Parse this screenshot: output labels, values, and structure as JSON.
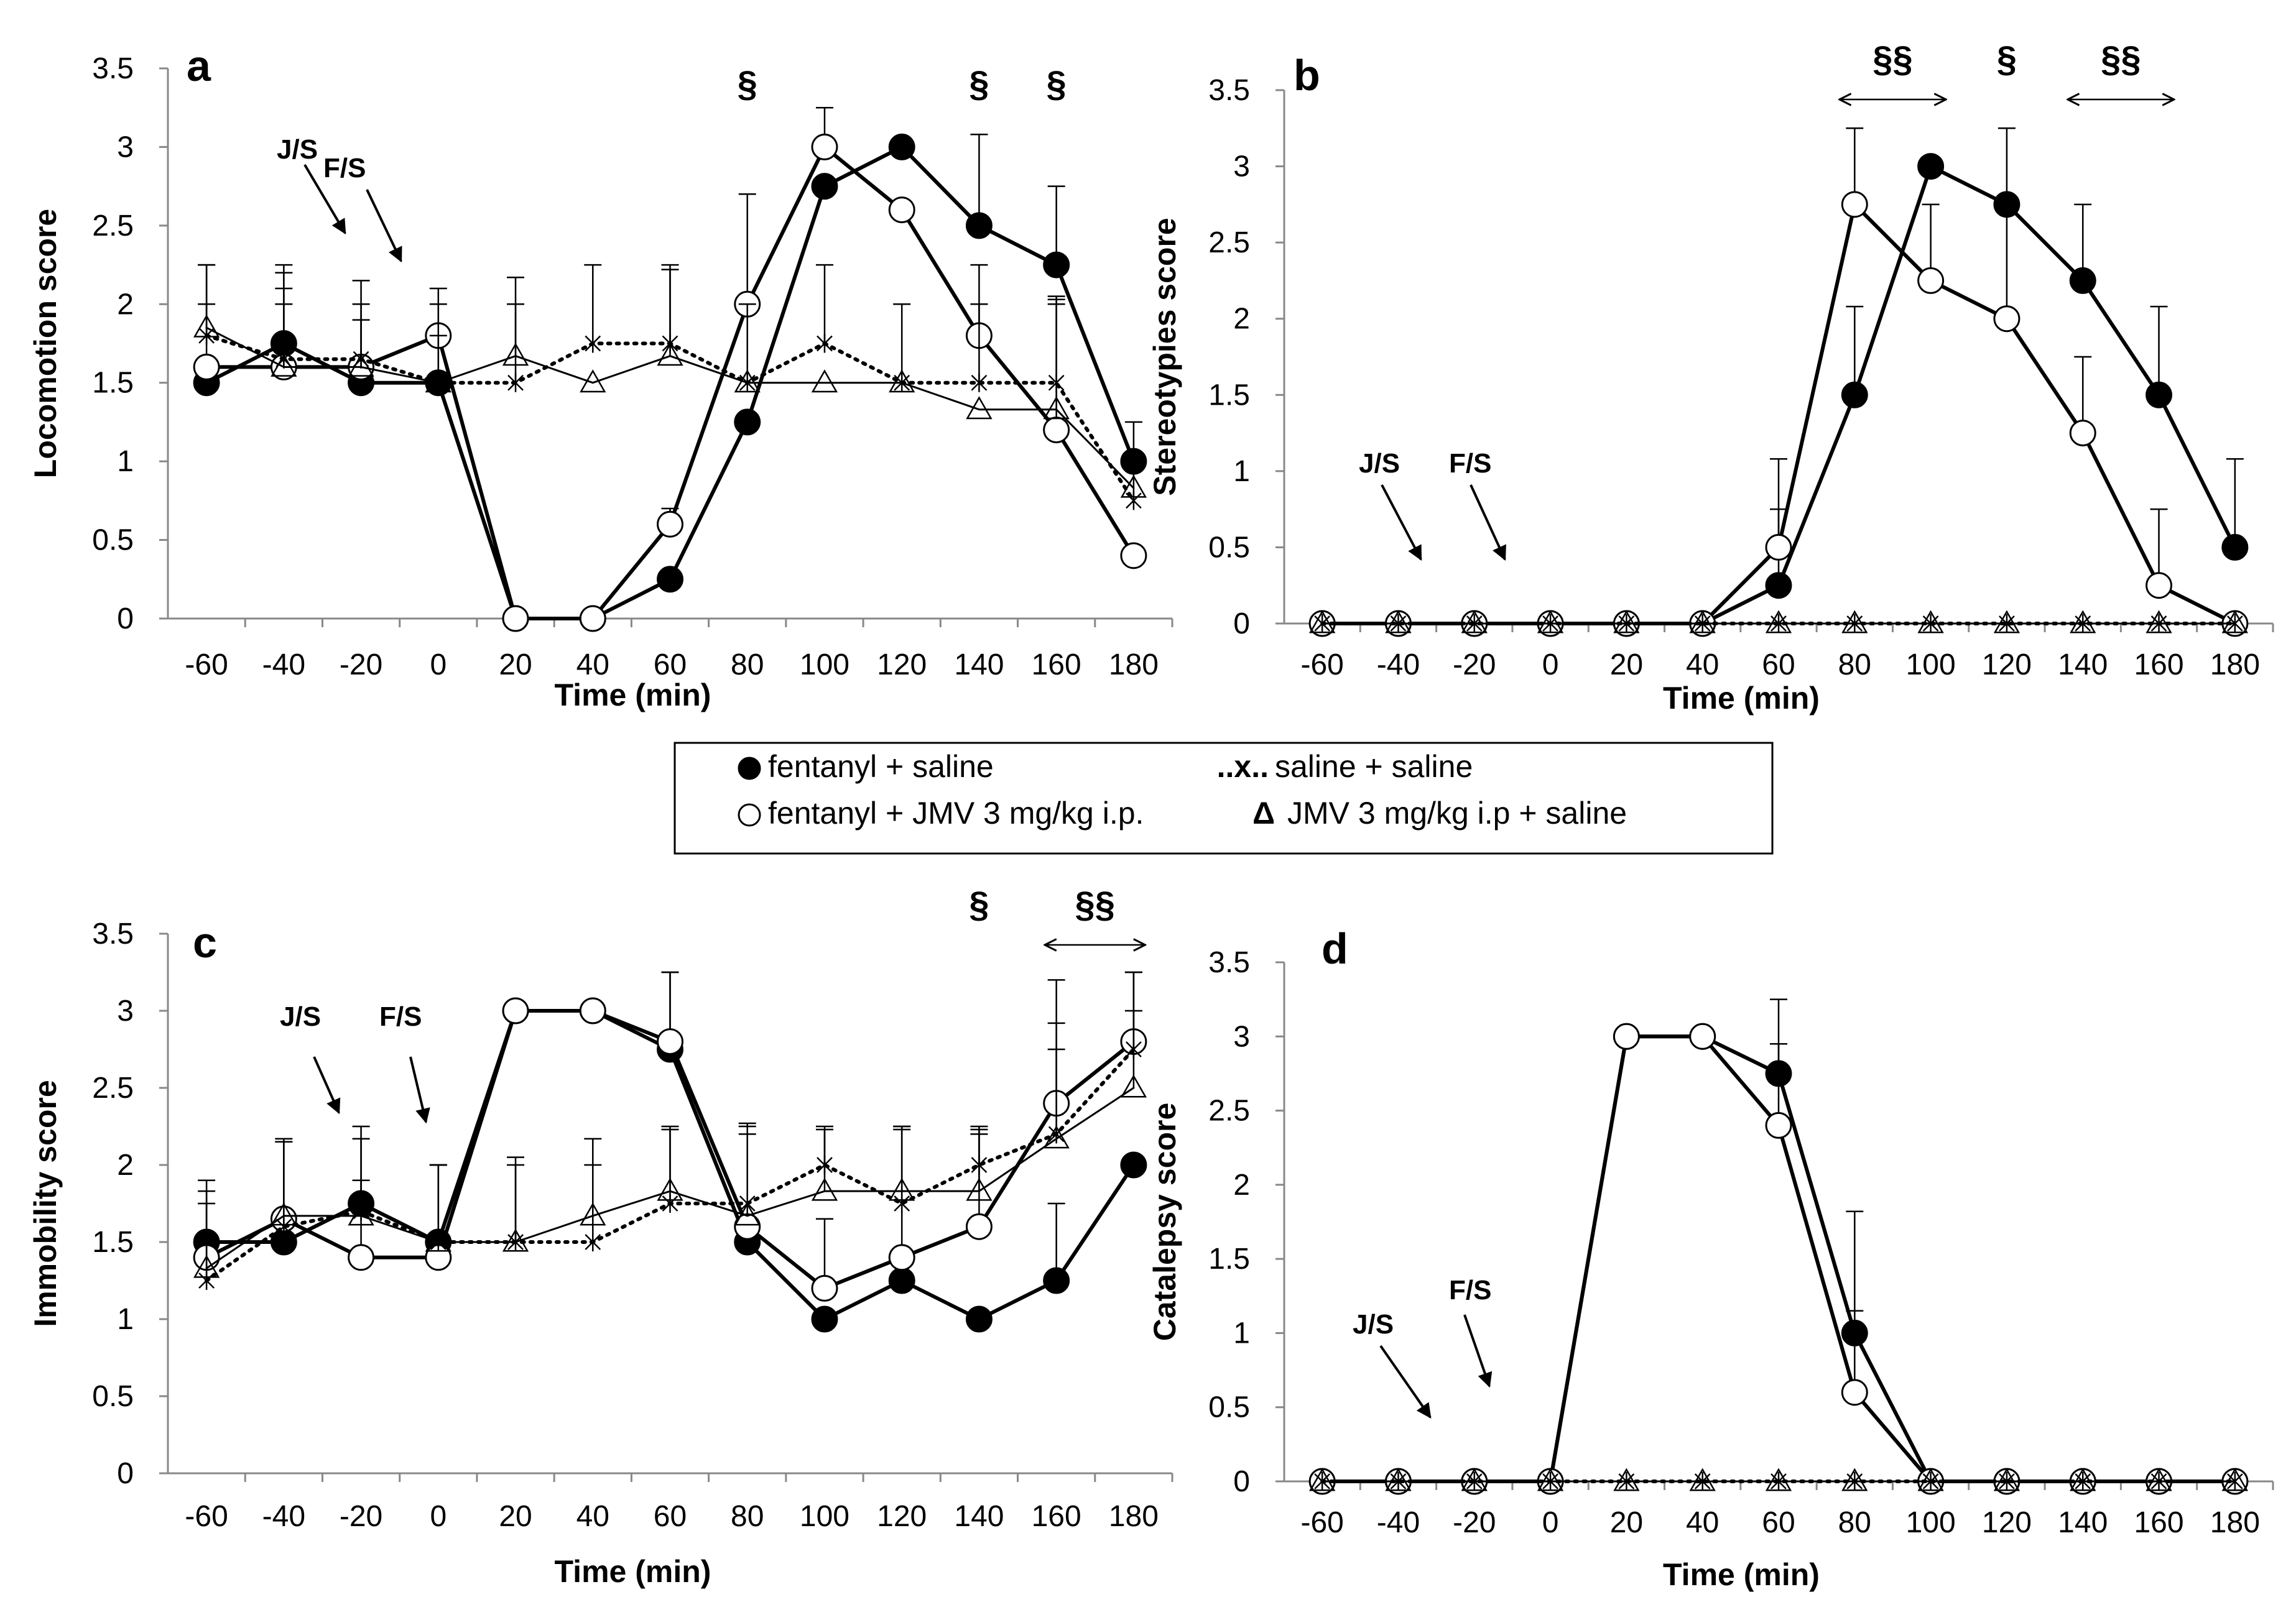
{
  "chart_data": [
    {
      "panel": "a",
      "type": "line",
      "xlabel": "Time (min)",
      "ylabel": "Locomotion score",
      "x": [
        -60,
        -40,
        -20,
        0,
        20,
        40,
        60,
        80,
        100,
        120,
        140,
        160,
        180
      ],
      "xlim": [
        -70,
        190
      ],
      "ylim": [
        0,
        3.5
      ],
      "yticks": [
        0,
        0.5,
        1,
        1.5,
        2,
        2.5,
        3,
        3.5
      ],
      "yticklabels": [
        "0",
        "0.5",
        "1",
        "1.5",
        "2",
        "2.5",
        "3",
        "3.5"
      ],
      "grid": false,
      "series": [
        {
          "name": "fentanyl + saline",
          "style": "filled-circle",
          "values": [
            1.5,
            1.75,
            1.5,
            1.5,
            0,
            0,
            0.25,
            1.25,
            2.75,
            3,
            2.5,
            2.25,
            1
          ],
          "errors": [
            0,
            0.5,
            0,
            0,
            0,
            0,
            0,
            0,
            0,
            0,
            0.58,
            0.5,
            0.25
          ]
        },
        {
          "name": "fentanyl + JMV 3 mg/kg i.p.",
          "style": "open-circle",
          "values": [
            1.6,
            1.6,
            1.6,
            1.8,
            0,
            0,
            0.6,
            2,
            3,
            2.6,
            1.8,
            1.2,
            0.4
          ],
          "errors": [
            0.4,
            0.5,
            0.4,
            0.3,
            0,
            0,
            0.1,
            0.7,
            0.25,
            0,
            0.45,
            0.85,
            0
          ]
        },
        {
          "name": "saline + saline",
          "style": "dotted-x",
          "values": [
            1.8,
            1.65,
            1.65,
            1.5,
            1.5,
            1.75,
            1.75,
            1.5,
            1.75,
            1.5,
            1.5,
            1.5,
            0.75
          ],
          "errors": [
            0.45,
            0.55,
            0.5,
            0.5,
            0.5,
            0.5,
            0.5,
            0.5,
            0.5,
            0.5,
            0.5,
            0.5,
            0.25
          ]
        },
        {
          "name": "JMV 3 mg/kg i.p + saline",
          "style": "open-triangle",
          "values": [
            1.85,
            1.6,
            1.6,
            1.5,
            1.67,
            1.5,
            1.67,
            1.5,
            1.5,
            1.5,
            1.33,
            1.33,
            0.83
          ],
          "errors": [
            0.4,
            0.4,
            0.3,
            0.3,
            0.5,
            0,
            0.55,
            0,
            0,
            0,
            0,
            0.7,
            0
          ]
        }
      ],
      "annotations": [
        {
          "text": "§",
          "x": 80
        },
        {
          "text": "§",
          "x": 140
        },
        {
          "text": "§",
          "x": 160
        }
      ],
      "injection_labels": [
        "J/S",
        "F/S"
      ]
    },
    {
      "panel": "b",
      "type": "line",
      "xlabel": "Time (min)",
      "ylabel": "Stereotypies score",
      "x": [
        -60,
        -40,
        -20,
        0,
        20,
        40,
        60,
        80,
        100,
        120,
        140,
        160,
        180
      ],
      "xlim": [
        -70,
        190
      ],
      "ylim": [
        0,
        3.5
      ],
      "yticks": [
        0,
        0.5,
        1,
        1.5,
        2,
        2.5,
        3,
        3.5
      ],
      "yticklabels": [
        "0",
        "0.5",
        "1",
        "1.5",
        "2",
        "2.5",
        "3",
        "3.5"
      ],
      "grid": false,
      "series": [
        {
          "name": "fentanyl + saline",
          "style": "filled-circle",
          "values": [
            0,
            0,
            0,
            0,
            0,
            0,
            0.25,
            1.5,
            3,
            2.75,
            2.25,
            1.5,
            0.5
          ],
          "errors": [
            0,
            0,
            0,
            0,
            0,
            0,
            0.5,
            0.58,
            0,
            0.5,
            0.5,
            0.58,
            0.58
          ]
        },
        {
          "name": "fentanyl + JMV 3 mg/kg i.p.",
          "style": "open-circle",
          "values": [
            0,
            0,
            0,
            0,
            0,
            0,
            0.5,
            2.75,
            2.25,
            2,
            1.25,
            0.25,
            0
          ],
          "errors": [
            0,
            0,
            0,
            0,
            0,
            0,
            0.58,
            0.5,
            0.5,
            0.7,
            0.5,
            0.5,
            0
          ]
        },
        {
          "name": "saline + saline",
          "style": "dotted-x",
          "values": [
            0,
            0,
            0,
            0,
            0,
            0,
            0,
            0,
            0,
            0,
            0,
            0,
            0
          ],
          "errors": [
            0,
            0,
            0,
            0,
            0,
            0,
            0,
            0,
            0,
            0,
            0,
            0,
            0
          ]
        },
        {
          "name": "JMV 3 mg/kg i.p + saline",
          "style": "open-triangle",
          "values": [
            0,
            0,
            0,
            0,
            0,
            0,
            0,
            0,
            0,
            0,
            0,
            0,
            0
          ],
          "errors": [
            0,
            0,
            0,
            0,
            0,
            0,
            0,
            0,
            0,
            0,
            0,
            0,
            0
          ]
        }
      ],
      "annotations": [
        {
          "text": "§§",
          "x": 90,
          "span": [
            76,
            104
          ]
        },
        {
          "text": "§",
          "x": 120
        },
        {
          "text": "§§",
          "x": 150,
          "span": [
            136,
            164
          ]
        }
      ],
      "injection_labels": [
        "J/S",
        "F/S"
      ]
    },
    {
      "panel": "c",
      "type": "line",
      "xlabel": "Time (min)",
      "ylabel": "Immobility score",
      "x": [
        -60,
        -40,
        -20,
        0,
        20,
        40,
        60,
        80,
        100,
        120,
        140,
        160,
        180
      ],
      "xlim": [
        -70,
        190
      ],
      "ylim": [
        0,
        3.5
      ],
      "yticks": [
        0,
        0.5,
        1,
        1.5,
        2,
        2.5,
        3,
        3.5
      ],
      "yticklabels": [
        "0",
        "0.5",
        "1",
        "1.5",
        "2",
        "2.5",
        "3",
        "3.5"
      ],
      "grid": false,
      "series": [
        {
          "name": "fentanyl + saline",
          "style": "filled-circle",
          "values": [
            1.5,
            1.5,
            1.75,
            1.5,
            3,
            3,
            2.75,
            1.5,
            1,
            1.25,
            1,
            1.25,
            2
          ],
          "errors": [
            0,
            0,
            0,
            0,
            0,
            0,
            0.5,
            0,
            0,
            0,
            0,
            0.5,
            0
          ]
        },
        {
          "name": "fentanyl + JMV 3 mg/kg i.p.",
          "style": "open-circle",
          "values": [
            1.4,
            1.65,
            1.4,
            1.4,
            3,
            3,
            2.8,
            1.6,
            1.2,
            1.4,
            1.6,
            2.4,
            2.8
          ],
          "errors": [
            0.5,
            0.5,
            0.5,
            0.6,
            0,
            0,
            0.45,
            0.6,
            0.45,
            0.85,
            0.6,
            0.8,
            0.45
          ]
        },
        {
          "name": "saline + saline",
          "style": "dotted-x",
          "values": [
            1.25,
            1.6,
            1.7,
            1.5,
            1.5,
            1.5,
            1.75,
            1.75,
            2,
            1.75,
            2,
            2.2,
            2.75
          ],
          "errors": [
            0.5,
            0.55,
            0.55,
            0.5,
            0.5,
            0.5,
            0.5,
            0.5,
            0.25,
            0.5,
            0.25,
            0.55,
            0.5
          ]
        },
        {
          "name": "JMV 3 mg/kg i.p + saline",
          "style": "open-triangle",
          "values": [
            1.33,
            1.67,
            1.67,
            1.5,
            1.5,
            1.67,
            1.83,
            1.67,
            1.83,
            1.83,
            1.83,
            2.17,
            2.5
          ],
          "errors": [
            0.5,
            0.5,
            0.5,
            0.5,
            0.55,
            0.5,
            0.4,
            0.6,
            0.4,
            0.4,
            0.4,
            0.75,
            0.5
          ]
        }
      ],
      "annotations": [
        {
          "text": "§",
          "x": 140
        },
        {
          "text": "§§",
          "x": 170,
          "span": [
            157,
            183
          ]
        }
      ],
      "injection_labels": [
        "J/S",
        "F/S"
      ]
    },
    {
      "panel": "d",
      "type": "line",
      "xlabel": "Time (min)",
      "ylabel": "Catalepsy score",
      "x": [
        -60,
        -40,
        -20,
        0,
        20,
        40,
        60,
        80,
        100,
        120,
        140,
        160,
        180
      ],
      "xlim": [
        -70,
        190
      ],
      "ylim": [
        0,
        3.5
      ],
      "yticks": [
        0,
        0.5,
        1,
        1.5,
        2,
        2.5,
        3,
        3.5
      ],
      "yticklabels": [
        "0",
        "0.5",
        "1",
        "1.5",
        "2",
        "2.5",
        "3",
        "3.5"
      ],
      "grid": false,
      "series": [
        {
          "name": "fentanyl + saline",
          "style": "filled-circle",
          "values": [
            0,
            0,
            0,
            0,
            3,
            3,
            2.75,
            1,
            0,
            0,
            0,
            0,
            0
          ],
          "errors": [
            0,
            0,
            0,
            0,
            0,
            0,
            0.5,
            0.82,
            0,
            0,
            0,
            0,
            0
          ]
        },
        {
          "name": "fentanyl + JMV 3 mg/kg i.p.",
          "style": "open-circle",
          "values": [
            0,
            0,
            0,
            0,
            3,
            3,
            2.4,
            0.6,
            0,
            0,
            0,
            0,
            0
          ],
          "errors": [
            0,
            0,
            0,
            0,
            0,
            0,
            0.55,
            0.55,
            0,
            0,
            0,
            0,
            0
          ]
        },
        {
          "name": "saline + saline",
          "style": "dotted-x",
          "values": [
            0,
            0,
            0,
            0,
            0,
            0,
            0,
            0,
            0,
            0,
            0,
            0,
            0
          ],
          "errors": [
            0,
            0,
            0,
            0,
            0,
            0,
            0,
            0,
            0,
            0,
            0,
            0,
            0
          ]
        },
        {
          "name": "JMV 3 mg/kg i.p + saline",
          "style": "open-triangle",
          "values": [
            0,
            0,
            0,
            0,
            0,
            0,
            0,
            0,
            0,
            0,
            0,
            0,
            0
          ],
          "errors": [
            0,
            0,
            0,
            0,
            0,
            0,
            0,
            0,
            0,
            0,
            0,
            0,
            0
          ]
        }
      ],
      "annotations": [],
      "injection_labels": [
        "J/S",
        "F/S"
      ]
    }
  ],
  "legend": {
    "items": [
      {
        "marker": "filled-circle",
        "prefix": "",
        "text": "fentanyl + saline"
      },
      {
        "marker": "none",
        "prefix": "..x..",
        "text": "saline + saline"
      },
      {
        "marker": "open-circle",
        "prefix": "",
        "text": "fentanyl + JMV 3 mg/kg i.p."
      },
      {
        "marker": "none",
        "prefix": "Δ",
        "text": "JMV 3 mg/kg i.p + saline"
      }
    ]
  },
  "colors": {
    "line": "#000000",
    "background": "#ffffff",
    "marker_fill_filled": "#000000",
    "marker_fill_open": "#ffffff"
  }
}
